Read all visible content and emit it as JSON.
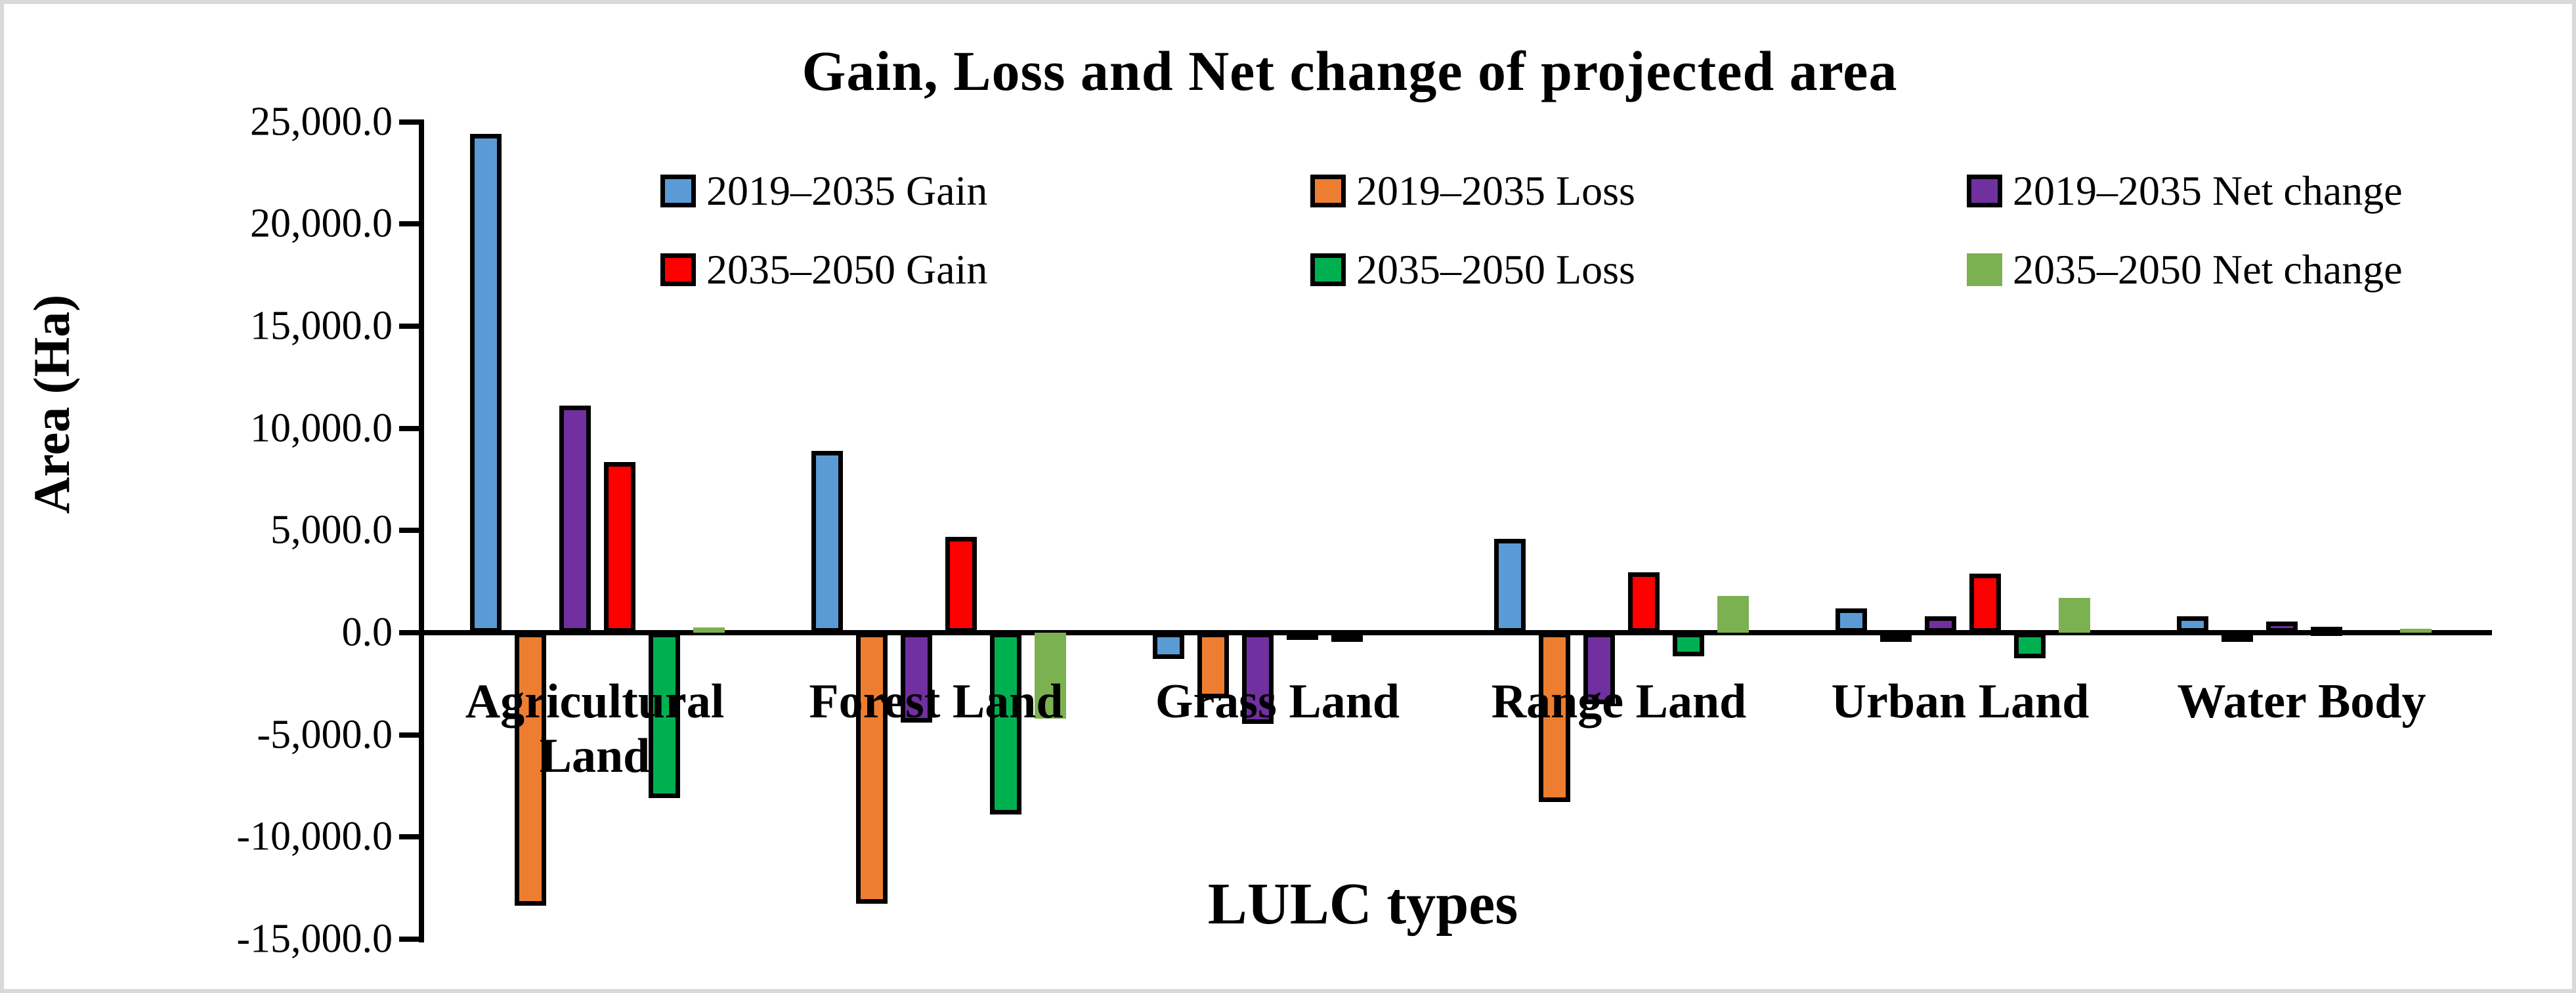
{
  "chart_data": {
    "type": "bar",
    "title": "Gain, Loss and Net change of projected area",
    "xlabel": "LULC types",
    "ylabel": "Area (Ha)",
    "grid": false,
    "legend_position": "top, two rows of three columns",
    "ylim": [
      -15000,
      25000
    ],
    "ytick_step": 5000,
    "yticks": [
      {
        "value": 25000,
        "label": "25,000.0"
      },
      {
        "value": 20000,
        "label": "20,000.0"
      },
      {
        "value": 15000,
        "label": "15,000.0"
      },
      {
        "value": 10000,
        "label": "10,000.0"
      },
      {
        "value": 5000,
        "label": "5,000.0"
      },
      {
        "value": 0,
        "label": "0.0"
      },
      {
        "value": -5000,
        "label": "-5,000.0"
      },
      {
        "value": -10000,
        "label": "-10,000.0"
      },
      {
        "value": -15000,
        "label": "-15,000.0"
      }
    ],
    "categories": [
      "Agricultural Land",
      "Forest Land",
      "Grass Land",
      "Range Land",
      "Urban Land",
      "Water Body"
    ],
    "series": [
      {
        "name": "2019–2035 Gain",
        "color": "#5B9BD5",
        "outlined": true,
        "values": [
          24400,
          8900,
          -1300,
          4600,
          1200,
          800
        ]
      },
      {
        "name": "2019–2035 Loss",
        "color": "#ED7D31",
        "outlined": true,
        "values": [
          -13350,
          -13250,
          -3200,
          -8300,
          -400,
          -300
        ]
      },
      {
        "name": "2019–2035 Net change",
        "color": "#7030A0",
        "outlined": true,
        "values": [
          11100,
          -4400,
          -4450,
          -3500,
          800,
          550
        ]
      },
      {
        "name": "2035–2050 Gain",
        "color": "#FF0000",
        "outlined": true,
        "values": [
          8350,
          4700,
          100,
          2950,
          2900,
          300
        ]
      },
      {
        "name": "2035–2050 Loss",
        "color": "#00B050",
        "outlined": true,
        "values": [
          -8100,
          -8900,
          -100,
          -1150,
          -1250,
          0
        ]
      },
      {
        "name": "2035–2050 Net change",
        "color": "#7CB152",
        "outlined": false,
        "values": [
          250,
          -4200,
          0,
          1800,
          1700,
          200
        ]
      }
    ]
  }
}
